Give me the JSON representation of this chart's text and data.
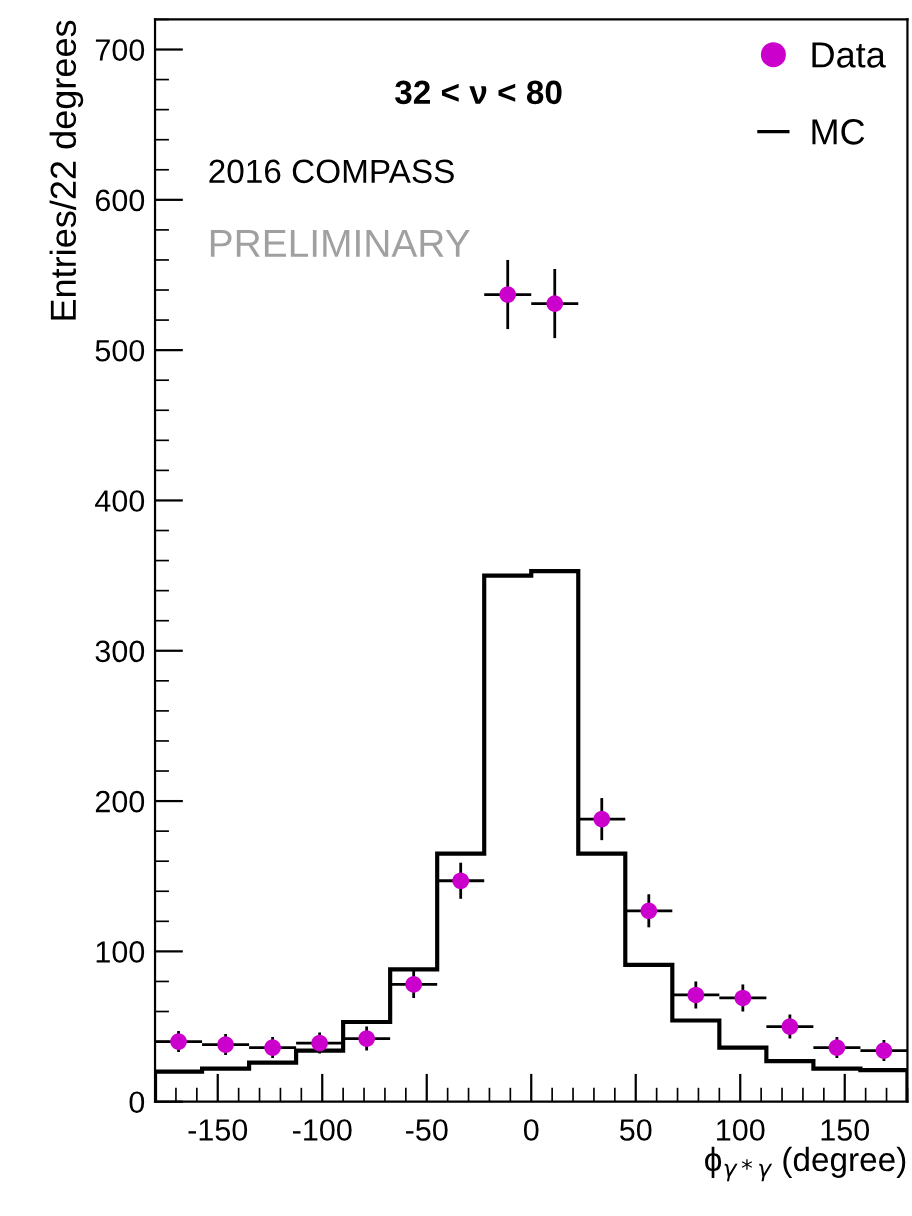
{
  "chart_data": {
    "type": "histogram",
    "xlabel": "ϕ$_{γ*γ}$ (degree)",
    "ylabel": "Entries/22 degrees",
    "annotations": [
      "32 < ν < 80",
      "2016 COMPASS",
      "PRELIMINARY"
    ],
    "bins": [
      -180,
      -157.5,
      -135,
      -112.5,
      -90,
      -67.5,
      -45,
      -22.5,
      0,
      22.5,
      45,
      67.5,
      90,
      112.5,
      135,
      157.5,
      180
    ],
    "series": [
      {
        "name": "Data",
        "type": "scatter",
        "color": "#cc00cc",
        "marker": "circle",
        "x": [
          -168.75,
          -146.25,
          -123.75,
          -101.25,
          -78.75,
          -56.25,
          -33.75,
          -11.25,
          11.25,
          33.75,
          56.25,
          78.75,
          101.25,
          123.75,
          146.25,
          168.75
        ],
        "values": [
          40,
          38,
          36,
          39,
          42,
          78,
          147,
          537,
          531,
          188,
          127,
          71,
          69,
          50,
          36,
          34
        ],
        "errors": [
          7,
          7,
          7,
          7,
          8,
          9,
          12,
          23,
          23,
          14,
          11,
          9,
          9,
          8,
          7,
          7
        ],
        "xerrors": [
          11.25,
          11.25,
          11.25,
          11.25,
          11.25,
          11.25,
          11.25,
          11.25,
          11.25,
          11.25,
          11.25,
          11.25,
          11.25,
          11.25,
          11.25,
          11.25
        ]
      },
      {
        "name": "MC",
        "color": "#000000",
        "values": [
          20,
          22,
          26,
          34,
          53,
          88,
          165,
          350,
          353,
          165,
          91,
          54,
          36,
          27,
          22,
          21
        ]
      }
    ],
    "xlim": [
      -180,
      180
    ],
    "xticks": [
      -150,
      -100,
      -50,
      0,
      50,
      100,
      150
    ],
    "ylim": [
      0,
      720
    ],
    "yticks": [
      0,
      100,
      200,
      300,
      400,
      500,
      600,
      700
    ],
    "legend": "top right"
  }
}
